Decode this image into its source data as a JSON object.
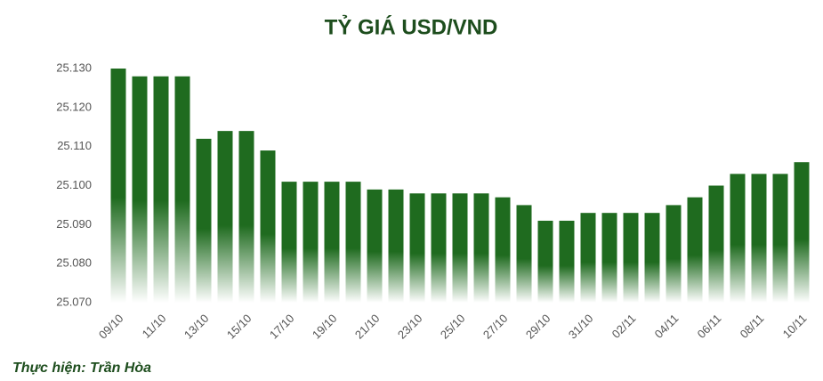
{
  "chart_data": {
    "type": "bar",
    "title": "TỶ GIÁ USD/VND",
    "credit": "Thực hiện: Trần Hòa",
    "categories": [
      "09/10",
      null,
      "11/10",
      null,
      "13/10",
      null,
      "15/10",
      null,
      "17/10",
      null,
      "19/10",
      null,
      "21/10",
      null,
      "23/10",
      null,
      "25/10",
      null,
      "27/10",
      null,
      "29/10",
      null,
      "31/10",
      null,
      "02/11",
      null,
      "04/11",
      null,
      "06/11",
      null,
      "08/11",
      null,
      "10/11"
    ],
    "values": [
      25130,
      25128,
      25128,
      25128,
      25112,
      25114,
      25114,
      25109,
      25101,
      25101,
      25101,
      25101,
      25099,
      25099,
      25098,
      25098,
      25098,
      25098,
      25097,
      25095,
      25091,
      25091,
      25093,
      25093,
      25093,
      25093,
      25095,
      25097,
      25100,
      25103,
      25103,
      25103,
      25106
    ],
    "color": "#1f6b1f",
    "ylim": [
      25070,
      25130
    ],
    "yticks": [
      {
        "value": 25070,
        "label": "25.070"
      },
      {
        "value": 25080,
        "label": "25.080"
      },
      {
        "value": 25090,
        "label": "25.090"
      },
      {
        "value": 25100,
        "label": "25.100"
      },
      {
        "value": 25110,
        "label": "25.110"
      },
      {
        "value": 25120,
        "label": "25.120"
      },
      {
        "value": 25130,
        "label": "25.130"
      }
    ],
    "grid": false
  }
}
